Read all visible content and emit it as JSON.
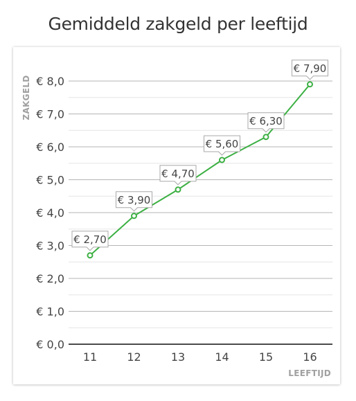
{
  "title": "Gemiddeld zakgeld per leeftijd",
  "chart_data": {
    "type": "line",
    "title": "Gemiddeld zakgeld per leeftijd",
    "xlabel": "LEEFTIJD",
    "ylabel": "ZAKGELD",
    "categories": [
      "11",
      "12",
      "13",
      "14",
      "15",
      "16"
    ],
    "series": [
      {
        "values": [
          2.7,
          3.9,
          4.7,
          5.6,
          6.3,
          7.9
        ],
        "color": "#3cb043"
      }
    ],
    "data_labels": [
      "€ 2,70",
      "€ 3,90",
      "€ 4,70",
      "€ 5,60",
      "€ 6,30",
      "€ 7,90"
    ],
    "y_ticks": [
      0,
      1,
      2,
      3,
      4,
      5,
      6,
      7,
      8
    ],
    "y_tick_labels": [
      "€ 0,0",
      "€ 1,0",
      "€ 2,0",
      "€ 3,0",
      "€ 4,0",
      "€ 5,0",
      "€ 6,0",
      "€ 7,0",
      "€ 8,0"
    ],
    "ylim": [
      0,
      8.4
    ],
    "grid": true,
    "legend": "none",
    "colors": {
      "line": "#3cb043",
      "grid_major": "#b5b5b5",
      "grid_minor": "#e6e6e6",
      "baseline": "#4a4a4a",
      "label_border": "#a8a8a8"
    }
  }
}
